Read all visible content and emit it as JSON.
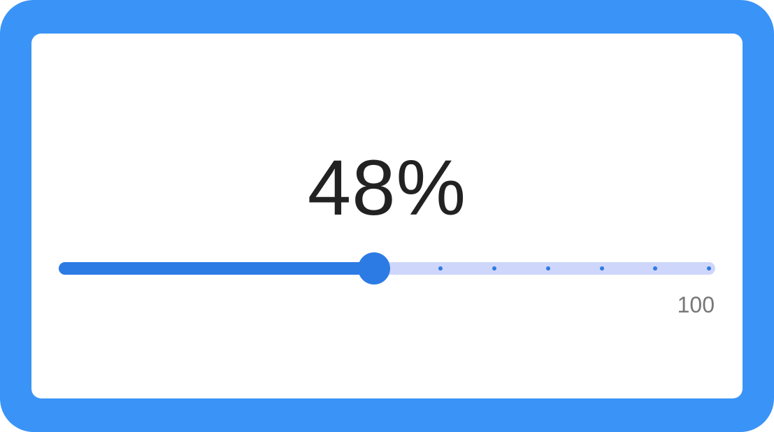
{
  "slider": {
    "display_value": "48%",
    "value_percent": 48,
    "max_label": "100",
    "tick_count": 12,
    "colors": {
      "frame": "#3a94f7",
      "fill": "#2c7be5",
      "track": "#cfd6fb",
      "value_text": "#222222",
      "max_label_text": "#777777"
    }
  }
}
